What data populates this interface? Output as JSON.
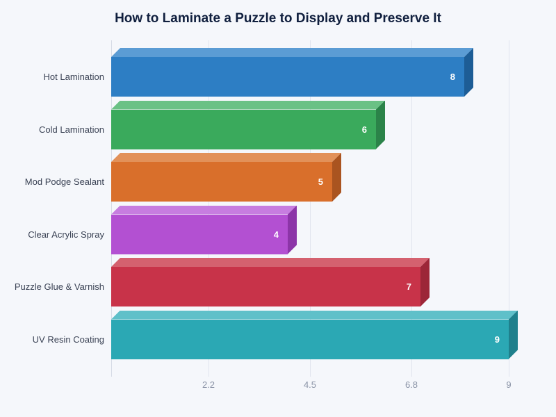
{
  "page": {
    "background": "#f5f7fb"
  },
  "chart_data": {
    "type": "bar",
    "orientation": "horizontal",
    "title": "How to Laminate a Puzzle to Display and Preserve It",
    "categories": [
      "Hot Lamination",
      "Cold Lamination",
      "Mod Podge Sealant",
      "Clear Acrylic Spray",
      "Puzzle Glue & Varnish",
      "UV Resin Coating"
    ],
    "values": [
      8,
      6,
      5,
      4,
      7,
      9
    ],
    "colors": {
      "front": [
        "#2d7ec4",
        "#3aaa5c",
        "#d96f2b",
        "#b350d2",
        "#c83349",
        "#2ba8b4"
      ],
      "top": [
        "#5b9cd4",
        "#6ac185",
        "#e29159",
        "#c77de0",
        "#d4616f",
        "#5fc0c9"
      ],
      "side": [
        "#1d5d96",
        "#2b8349",
        "#aa5420",
        "#8c35a8",
        "#9c2638",
        "#1f808c"
      ]
    },
    "xticks": [
      "2.2",
      "4.5",
      "6.8",
      "9"
    ],
    "xtick_values": [
      2.2,
      4.5,
      6.8,
      9
    ],
    "xlim": [
      0,
      9
    ],
    "grid": true,
    "legend": false
  }
}
